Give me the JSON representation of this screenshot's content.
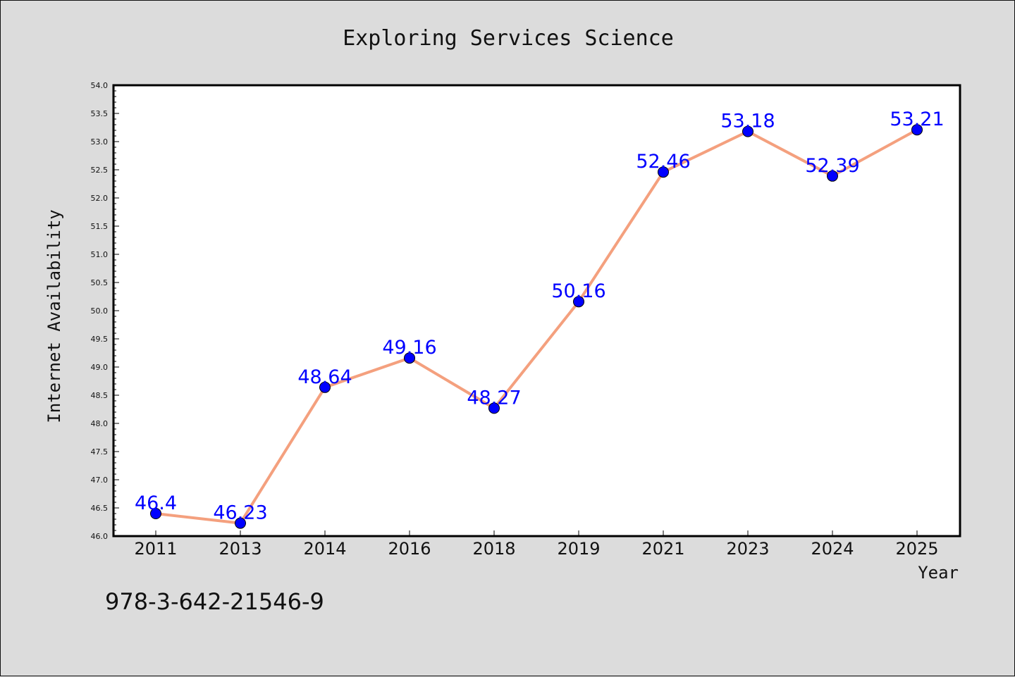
{
  "chart_data": {
    "type": "line",
    "title": "Exploring Services Science",
    "xlabel": "Year",
    "ylabel": "Internet Availability",
    "categories": [
      "2011",
      "2013",
      "2014",
      "2016",
      "2018",
      "2019",
      "2021",
      "2023",
      "2024",
      "2025"
    ],
    "series": [
      {
        "values": [
          46.4,
          46.23,
          48.64,
          49.16,
          48.27,
          50.16,
          52.46,
          53.18,
          52.39,
          53.21
        ],
        "labels": [
          "46.4",
          "46.23",
          "48.64",
          "49.16",
          "48.27",
          "50.16",
          "52.46",
          "53.18",
          "52.39",
          "53.21"
        ],
        "line_color": "#f4a07e",
        "marker_color": "#0000ff",
        "label_color": "#0000ff"
      }
    ],
    "ylim": [
      46.0,
      54.0
    ],
    "yticks": [
      "46.0",
      "46.5",
      "47.0",
      "47.5",
      "48.0",
      "48.5",
      "49.0",
      "49.5",
      "50.0",
      "50.5",
      "51.0",
      "51.5",
      "52.0",
      "52.5",
      "53.0",
      "53.5",
      "54.0"
    ],
    "grid": false,
    "legend": "none"
  },
  "footnote": "978-3-642-21546-9",
  "colors": {
    "background": "#dcdcdc",
    "plot_background": "#ffffff",
    "axis": "#000000"
  }
}
